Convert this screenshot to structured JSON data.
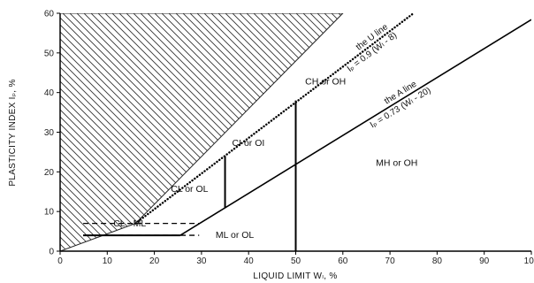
{
  "chart_data": {
    "type": "line",
    "title": "",
    "xlabel": "LIQUID LIMIT Wₗ, %",
    "ylabel": "PLASTICITY INDEX Iₚ, %",
    "xlim": [
      0,
      100
    ],
    "ylim": [
      0,
      60
    ],
    "x_ticks": [
      0,
      10,
      20,
      30,
      40,
      50,
      60,
      70,
      80,
      90,
      100
    ],
    "y_ticks": [
      0,
      10,
      20,
      30,
      40,
      50,
      60
    ],
    "grid": false,
    "series": [
      {
        "name": "the A line",
        "style": "solid",
        "x": [
          25.5,
          100
        ],
        "y": [
          4,
          58.4
        ]
      },
      {
        "name": "the U line",
        "style": "dotted",
        "x": [
          16,
          75
        ],
        "y": [
          7,
          60
        ]
      }
    ],
    "boundaries": [
      {
        "style": "solid",
        "x": [
          35,
          35
        ],
        "y": [
          11,
          24
        ]
      },
      {
        "style": "solid",
        "x": [
          50,
          50
        ],
        "y": [
          0,
          38
        ]
      },
      {
        "style": "solid",
        "x": [
          4.9,
          25.5
        ],
        "y": [
          4,
          4
        ]
      },
      {
        "style": "dashed",
        "x": [
          4.9,
          29.5
        ],
        "y": [
          4,
          4
        ]
      },
      {
        "style": "dashed",
        "x": [
          4.9,
          29.5
        ],
        "y": [
          7,
          7
        ]
      }
    ],
    "hatched_region": {
      "x": [
        0,
        0,
        60,
        16,
        0
      ],
      "y": [
        0,
        60,
        60,
        7,
        0
      ]
    },
    "line_labels": {
      "a_line_name": "the A line",
      "a_line_eq": "Iₚ = 0.73 (Wₗ - 20)",
      "u_line_name": "the U line",
      "u_line_eq": "Iₚ = 0.9 (Wₗ - 8)"
    },
    "zones": [
      {
        "label": "CH or OH",
        "x": 52,
        "y": 42
      },
      {
        "label": "CI or OI",
        "x": 36.5,
        "y": 26.5
      },
      {
        "label": "CL or OL",
        "x": 23.5,
        "y": 15
      },
      {
        "label": "CL - ML",
        "x": 11.3,
        "y": 6.3
      },
      {
        "label": "ML or OL",
        "x": 33,
        "y": 3.4
      },
      {
        "label": "MH or OH",
        "x": 67,
        "y": 21.5
      }
    ],
    "colors": {
      "axis": "#000000",
      "lines": "#000000",
      "hatch": "#333333",
      "background": "#ffffff"
    }
  }
}
